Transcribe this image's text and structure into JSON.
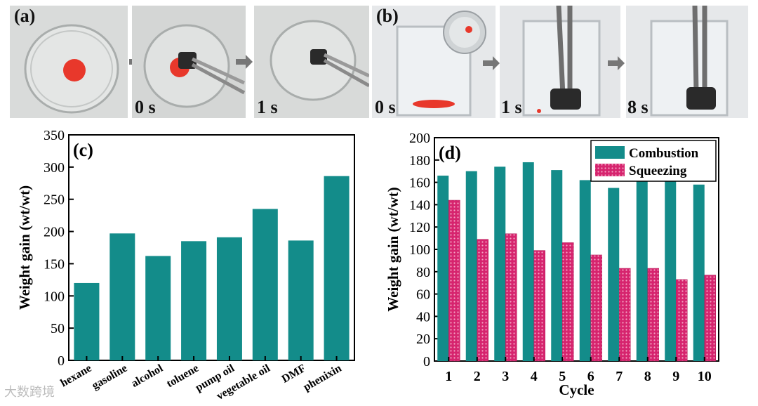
{
  "panel_labels": {
    "a": "(a)",
    "b": "(b)",
    "c": "(c)",
    "d": "(d)"
  },
  "photo_time_labels": {
    "a2": "0 s",
    "a3": "1 s",
    "b1": "0 s",
    "b2": "1 s",
    "b3": "8 s"
  },
  "watermark": "大数跨境",
  "colors": {
    "combustion": "#138c8a",
    "squeezing": "#d6246e",
    "oil": "#e8382b",
    "sponge": "#2a2a2a"
  },
  "chart_data": [
    {
      "type": "bar",
      "panel": "(c)",
      "categories": [
        "hexane",
        "gasoline",
        "alcohol",
        "toluene",
        "pump oil",
        "vegetable oil",
        "DMF",
        "phenixin"
      ],
      "values": [
        120,
        197,
        162,
        185,
        191,
        235,
        186,
        286
      ],
      "xlabel": "",
      "ylabel": "Weight gain (wt/wt)",
      "ylim": [
        0,
        350
      ],
      "yticks": [
        0,
        50,
        100,
        150,
        200,
        250,
        300,
        350
      ]
    },
    {
      "type": "bar",
      "panel": "(d)",
      "categories": [
        "1",
        "2",
        "3",
        "4",
        "5",
        "6",
        "7",
        "8",
        "9",
        "10"
      ],
      "series": [
        {
          "name": "Combustion",
          "values": [
            166,
            170,
            174,
            178,
            171,
            162,
            155,
            162,
            163,
            158
          ]
        },
        {
          "name": "Squeezing",
          "values": [
            144,
            109,
            114,
            99,
            106,
            95,
            83,
            83,
            73,
            77
          ]
        }
      ],
      "xlabel": "Cycle",
      "ylabel": "Weight gain (wt/wt)",
      "ylim": [
        0,
        200
      ],
      "yticks": [
        0,
        20,
        40,
        60,
        80,
        100,
        120,
        140,
        160,
        180,
        200
      ],
      "legend": "top-right"
    }
  ]
}
